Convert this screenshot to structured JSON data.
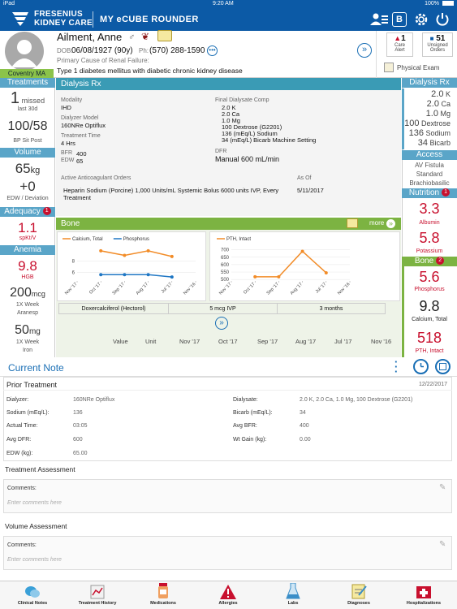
{
  "status": {
    "device": "iPad",
    "time": "9:20 AM",
    "battery": "100%"
  },
  "header": {
    "brand_line1": "FRESENIUS",
    "brand_line2": "KIDNEY CARE",
    "app_title": "MY eCUBE ROUNDER",
    "b_label": "B"
  },
  "patient": {
    "name": "Ailment, Anne",
    "dob_label": "DOB:",
    "dob": "06/08/1927 (90y)",
    "ph_label": "Ph:",
    "phone": "(570) 288-1590",
    "cause_label": "Primary Cause of Renal Failure:",
    "cause": "Type 1 diabetes mellitus with diabetic chronic kidney disease",
    "clinic": "Coventry MA",
    "care_alert_count": "1",
    "care_alert_label1": "Care",
    "care_alert_label2": "Alert",
    "unsigned_count": "51",
    "unsigned_label1": "Unsigned",
    "unsigned_label2": "Orders",
    "physical_exam": "Physical Exam"
  },
  "left": {
    "treatments_title": "Treatments",
    "missed_value": "1",
    "missed_label": "missed",
    "missed_sub": "last 30d",
    "bp": "100/58",
    "bp_label": "BP Sit Post",
    "volume_title": "Volume",
    "edw_value": "65",
    "edw_unit": "kg",
    "deviation": "+0",
    "edw_label": "EDW / Deviation",
    "adequacy_title": "Adequacy",
    "adequacy_badge": "1",
    "sptkv": "1.1",
    "sptkv_label": "spKt/V",
    "anemia_title": "Anemia",
    "hgb": "9.8",
    "hgb_label": "HGB",
    "aranesp_value": "200",
    "aranesp_unit": "mcg",
    "aranesp_freq": "1X Week",
    "aranesp_label": "Aranesp",
    "iron_value": "50",
    "iron_unit": "mg",
    "iron_freq": "1X Week",
    "iron_label": "Iron"
  },
  "dialysis_rx": {
    "title": "Dialysis Rx",
    "modality_label": "Modality",
    "modality": "IHD",
    "dialyzer_label": "Dialyzer Model",
    "dialyzer": "160NRe Optiflux",
    "time_label": "Treatment Time",
    "time": "4 Hrs",
    "bfr_label": "BFR",
    "bfr": "400",
    "edw_label": "EDW",
    "edw": "65",
    "dialysate_label": "Final Dialysate Comp",
    "dialysate": [
      "2.0 K",
      "2.0 Ca",
      "1.0 Mg",
      "100 Dextrose (G2201)",
      "136 (mEq/L) Sodium",
      "34 (mEq/L) Bicarb Machine Setting"
    ],
    "dfr_label": "DFR",
    "dfr": "Manual 600 mL/min",
    "anticoag_label": "Active Anticoagulant Orders",
    "asof_label": "As Of",
    "anticoag": "Heparin Sodium (Porcine) 1,000 Units/mL Systemic Bolus 6000 units IVP, Every Treatment",
    "asof": "5/11/2017"
  },
  "bone_panel": {
    "title": "Bone",
    "more": "more",
    "med": "Doxercalciferol (Hectorol)",
    "dose": "5 mcg IVP",
    "duration": "3 months",
    "table_headers": [
      "Value",
      "Unit",
      "Nov '17",
      "Oct '17",
      "Sep '17",
      "Aug '17",
      "Jul '17",
      "Nov '16"
    ]
  },
  "chart_data": [
    {
      "type": "line",
      "x": [
        "Nov '17",
        "Oct '17",
        "Sep '17",
        "Aug '17",
        "Jul '17",
        "Nov '16"
      ],
      "series": [
        {
          "name": "Calcium, Total",
          "values": [
            null,
            9.8,
            9.0,
            9.8,
            8.8,
            null
          ],
          "color": "#f28c28"
        },
        {
          "name": "Phosphorus",
          "values": [
            null,
            5.6,
            5.6,
            5.6,
            5.2,
            null
          ],
          "color": "#1f77c4"
        }
      ],
      "yticks": [
        "6",
        "8"
      ],
      "ylim": [
        4.5,
        10.5
      ]
    },
    {
      "type": "line",
      "x": [
        "Nov '17",
        "Oct '17",
        "Sep '17",
        "Aug '17",
        "Jul '17",
        "Nov '16"
      ],
      "series": [
        {
          "name": "PTH, Intact",
          "values": [
            null,
            518,
            518,
            690,
            545,
            null
          ],
          "color": "#f28c28"
        }
      ],
      "yticks": [
        "500",
        "550",
        "600",
        "650",
        "700"
      ],
      "ylim": [
        490,
        720
      ]
    }
  ],
  "right": {
    "rx_title": "Dialysis Rx",
    "rx_lines": [
      {
        "num": "2.0",
        "unit": "K"
      },
      {
        "num": "2.0",
        "unit": "Ca"
      },
      {
        "num": "1.0",
        "unit": "Mg"
      },
      {
        "num": "100",
        "unit": "Dextrose"
      },
      {
        "num": "136",
        "unit": "Sodium"
      },
      {
        "num": "34",
        "unit": "Bicarb"
      }
    ],
    "access_title": "Access",
    "access1": "AV Fistula",
    "access2": "Standard",
    "access3": "Brachiobasilic",
    "nutrition_title": "Nutrition",
    "nutrition_badge": "1",
    "albumin": "3.3",
    "albumin_label": "Albumin",
    "potassium": "5.8",
    "potassium_label": "Potassium",
    "bone_title": "Bone",
    "bone_badge": "2",
    "phos": "5.6",
    "phos_label": "Phosphorus",
    "calcium": "9.8",
    "calcium_label": "Calcium, Total",
    "pth": "518",
    "pth_label": "PTH, Intact"
  },
  "note": {
    "title": "Current Note",
    "prior_title": "Prior Treatment",
    "prior_date": "12/22/2017",
    "fields_left": [
      {
        "label": "Dialyzer:",
        "value": "160NRe Optiflux"
      },
      {
        "label": "Sodium (mEq/L):",
        "value": "136"
      },
      {
        "label": "Actual Time:",
        "value": "03:05"
      },
      {
        "label": "Avg DFR:",
        "value": "600"
      },
      {
        "label": "EDW (kg):",
        "value": "65.00"
      }
    ],
    "fields_right": [
      {
        "label": "Dialysate:",
        "value": "2.0 K, 2.0 Ca, 1.0 Mg, 100 Dextrose (G2201)"
      },
      {
        "label": "Bicarb (mEq/L):",
        "value": "34"
      },
      {
        "label": "Avg BFR:",
        "value": "400"
      },
      {
        "label": "Wt Gain (kg):",
        "value": "0.00"
      }
    ],
    "treatment_assessment": "Treatment Assessment",
    "volume_assessment": "Volume Assessment",
    "comments_label": "Comments:",
    "comments_placeholder": "Enter comments here"
  },
  "tabs": [
    "Clinical Notes",
    "Treatment History",
    "Medications",
    "Allergies",
    "Labs",
    "Diagnoses",
    "Hospitalizations"
  ]
}
